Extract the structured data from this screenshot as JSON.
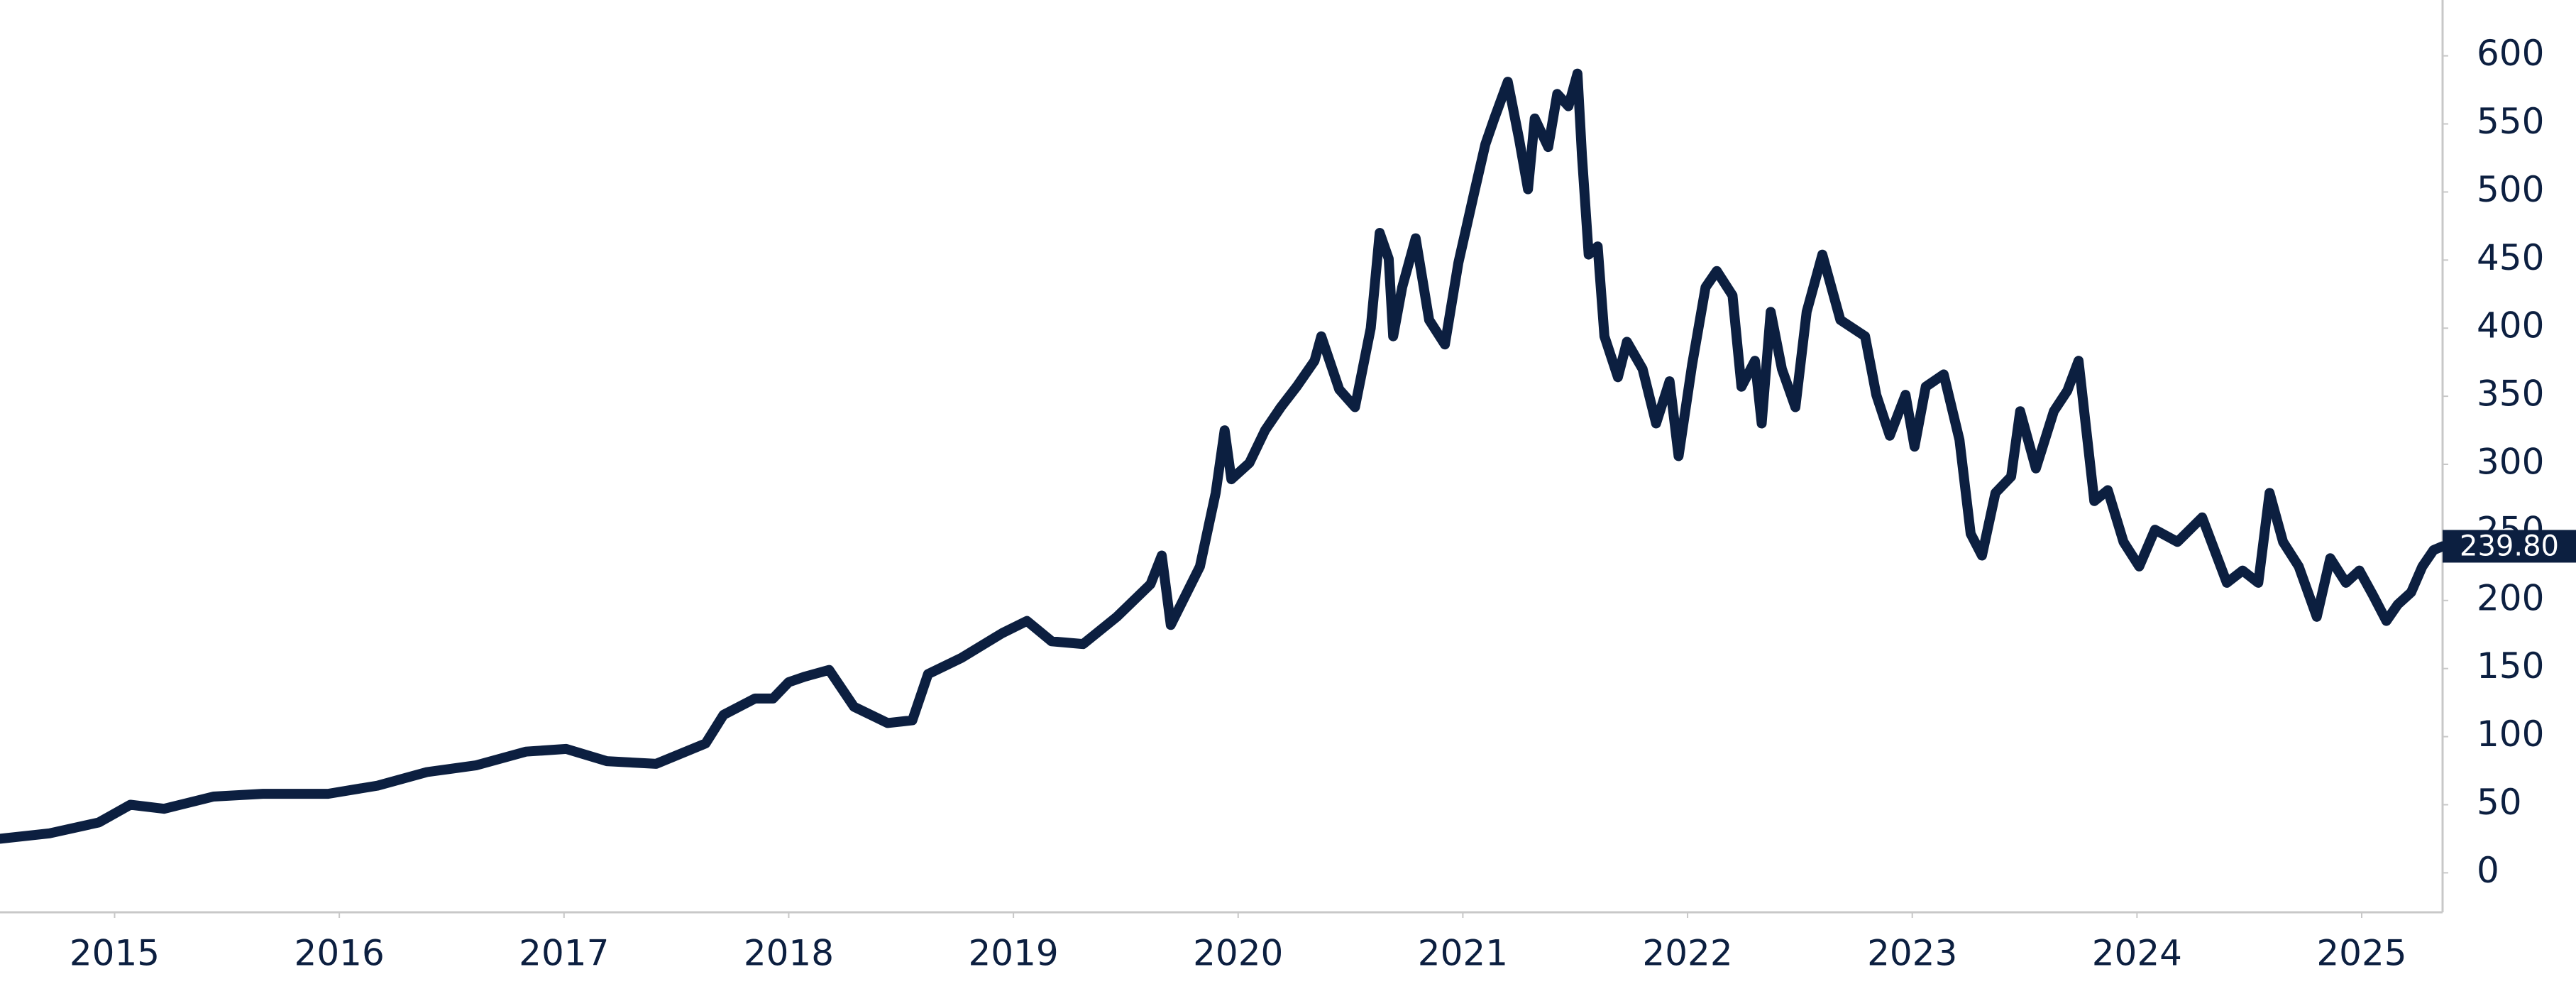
{
  "chart_data": {
    "type": "line",
    "color": "#0c1f40",
    "axis_side": "right",
    "x": [
      2014.49,
      2014.71,
      2014.93,
      2015.07,
      2015.22,
      2015.44,
      2015.66,
      2015.95,
      2016.17,
      2016.39,
      2016.61,
      2016.83,
      2017.01,
      2017.19,
      2017.41,
      2017.63,
      2017.71,
      2017.85,
      2017.93,
      2018.0,
      2018.07,
      2018.18,
      2018.29,
      2018.44,
      2018.55,
      2018.62,
      2018.77,
      2018.95,
      2019.06,
      2019.17,
      2019.31,
      2019.46,
      2019.61,
      2019.66,
      2019.7,
      2019.83,
      2019.9,
      2019.94,
      2019.97,
      2020.05,
      2020.12,
      2020.19,
      2020.26,
      2020.34,
      2020.37,
      2020.45,
      2020.52,
      2020.59,
      2020.63,
      2020.67,
      2020.69,
      2020.73,
      2020.79,
      2020.85,
      2020.92,
      2020.98,
      2021.05,
      2021.1,
      2021.14,
      2021.2,
      2021.25,
      2021.29,
      2021.32,
      2021.38,
      2021.42,
      2021.47,
      2021.51,
      2021.53,
      2021.56,
      2021.6,
      2021.63,
      2021.69,
      2021.73,
      2021.8,
      2021.86,
      2021.92,
      2021.96,
      2022.02,
      2022.08,
      2022.13,
      2022.2,
      2022.24,
      2022.3,
      2022.33,
      2022.37,
      2022.42,
      2022.48,
      2022.53,
      2022.6,
      2022.68,
      2022.79,
      2022.84,
      2022.9,
      2022.97,
      2023.01,
      2023.06,
      2023.14,
      2023.21,
      2023.26,
      2023.31,
      2023.37,
      2023.44,
      2023.48,
      2023.55,
      2023.63,
      2023.69,
      2023.74,
      2023.81,
      2023.87,
      2023.94,
      2024.01,
      2024.08,
      2024.18,
      2024.29,
      2024.4,
      2024.47,
      2024.54,
      2024.59,
      2024.65,
      2024.72,
      2024.8,
      2024.86,
      2024.93,
      2024.99,
      2025.05,
      2025.11,
      2025.16,
      2025.22,
      2025.27,
      2025.32,
      2025.36
    ],
    "values": [
      25,
      29,
      37,
      50,
      47,
      56,
      58,
      58,
      64,
      74,
      79,
      89,
      91,
      82,
      80,
      95,
      116,
      128,
      128,
      140,
      144,
      149,
      122,
      110,
      112,
      146,
      158,
      176,
      185,
      170,
      168,
      188,
      212,
      233,
      182,
      225,
      279,
      325,
      289,
      301,
      325,
      342,
      357,
      376,
      394,
      355,
      342,
      400,
      470,
      451,
      394,
      430,
      466,
      406,
      388,
      448,
      499,
      535,
      554,
      581,
      539,
      502,
      554,
      533,
      572,
      563,
      587,
      527,
      454,
      460,
      394,
      364,
      390,
      370,
      330,
      361,
      306,
      373,
      430,
      442,
      424,
      357,
      376,
      330,
      412,
      370,
      342,
      412,
      454,
      406,
      394,
      351,
      321,
      351,
      313,
      357,
      366,
      318,
      249,
      233,
      279,
      291,
      339,
      297,
      339,
      354,
      376,
      273,
      281,
      243,
      225,
      252,
      243,
      261,
      213,
      222,
      213,
      279,
      243,
      225,
      188,
      231,
      213,
      222,
      204,
      185,
      197,
      206,
      225,
      237,
      239.8
    ],
    "value_labels": [
      null,
      null,
      null,
      null,
      null,
      null,
      null,
      null,
      null,
      null,
      null,
      null,
      null,
      null,
      null,
      null,
      null,
      null,
      null,
      null,
      null,
      null,
      null,
      null,
      null,
      null,
      null,
      null,
      null,
      null,
      null,
      null,
      null,
      null,
      null,
      null,
      null,
      null,
      null,
      null,
      null,
      null,
      null,
      null,
      null,
      null,
      null,
      null,
      null,
      null,
      null,
      null,
      null,
      null,
      null,
      null,
      null,
      null,
      null,
      null,
      null,
      null,
      null,
      null,
      null,
      null,
      null,
      null,
      null,
      null,
      null,
      null,
      null,
      null,
      null,
      null,
      null,
      null,
      null,
      null,
      null,
      null,
      null,
      null,
      null,
      null,
      null,
      null,
      null,
      null,
      null,
      null,
      null,
      null,
      null,
      null,
      null,
      null,
      null,
      null,
      null,
      null,
      null,
      null,
      null,
      null,
      null,
      null,
      null,
      null,
      null,
      null,
      null,
      null,
      null,
      null,
      null,
      null,
      null,
      null,
      null,
      null,
      null,
      null,
      null,
      null,
      null,
      null,
      null,
      null,
      "239.80"
    ],
    "xlim": [
      2014.49,
      2025.36
    ],
    "xticks": [
      2015,
      2016,
      2017,
      2018,
      2019,
      2020,
      2021,
      2022,
      2023,
      2024,
      2025
    ],
    "ylim": [
      -29,
      641
    ],
    "yticks": [
      0,
      50,
      100,
      150,
      200,
      250,
      300,
      350,
      400,
      450,
      500,
      550,
      600
    ]
  }
}
